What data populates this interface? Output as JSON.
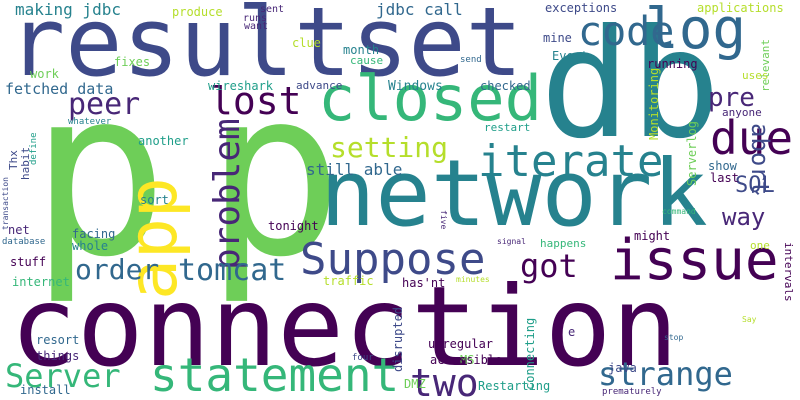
{
  "colors": {
    "background": "#ffffff",
    "palette": [
      "#440154",
      "#482777",
      "#3e4a89",
      "#31688e",
      "#26828e",
      "#1f9e89",
      "#35b779",
      "#6ece58",
      "#b5de2b",
      "#fde725"
    ]
  },
  "words": [
    "connection",
    "p",
    "p",
    "network",
    "resultset",
    "db",
    "app",
    "closed",
    "log",
    "issue",
    "Suppose",
    "statement",
    "due",
    "iterate",
    "code",
    "lost",
    "problem",
    "setting",
    "peer",
    "strange",
    "two",
    "Server",
    "tomcat",
    "got",
    "order",
    "abort",
    "pre",
    "way",
    "SQL",
    "making jdbc",
    "jdbc call",
    "fetched data",
    "exceptions",
    "applications",
    "still able",
    "produce",
    "sent",
    "runs",
    "want",
    "clue",
    "month",
    "mine",
    "Event",
    "cause",
    "fixes",
    "work",
    "wireshark",
    "advance",
    "Windows",
    "checked",
    "running",
    "relevant",
    "uses",
    "send",
    "anyone",
    "whatever",
    "Thx",
    "habit",
    "define",
    "another",
    "restart",
    "Serverlog",
    "Monitoring",
    "show",
    "last",
    "transaction",
    "sort",
    "net",
    "facing",
    "whole",
    "tonight",
    "database",
    "might",
    "happens",
    "signal",
    "five",
    "stuff",
    "command",
    "one",
    "internet",
    "traffic",
    "minutes",
    "has'nt",
    "intervals",
    "resort",
    "Say",
    "things",
    "unregular",
    "e",
    "stop",
    "MS",
    "disrupted",
    "connecting",
    "java",
    "accessible",
    "four",
    "DMZ",
    "Restarting",
    "install",
    "prematurely"
  ]
}
